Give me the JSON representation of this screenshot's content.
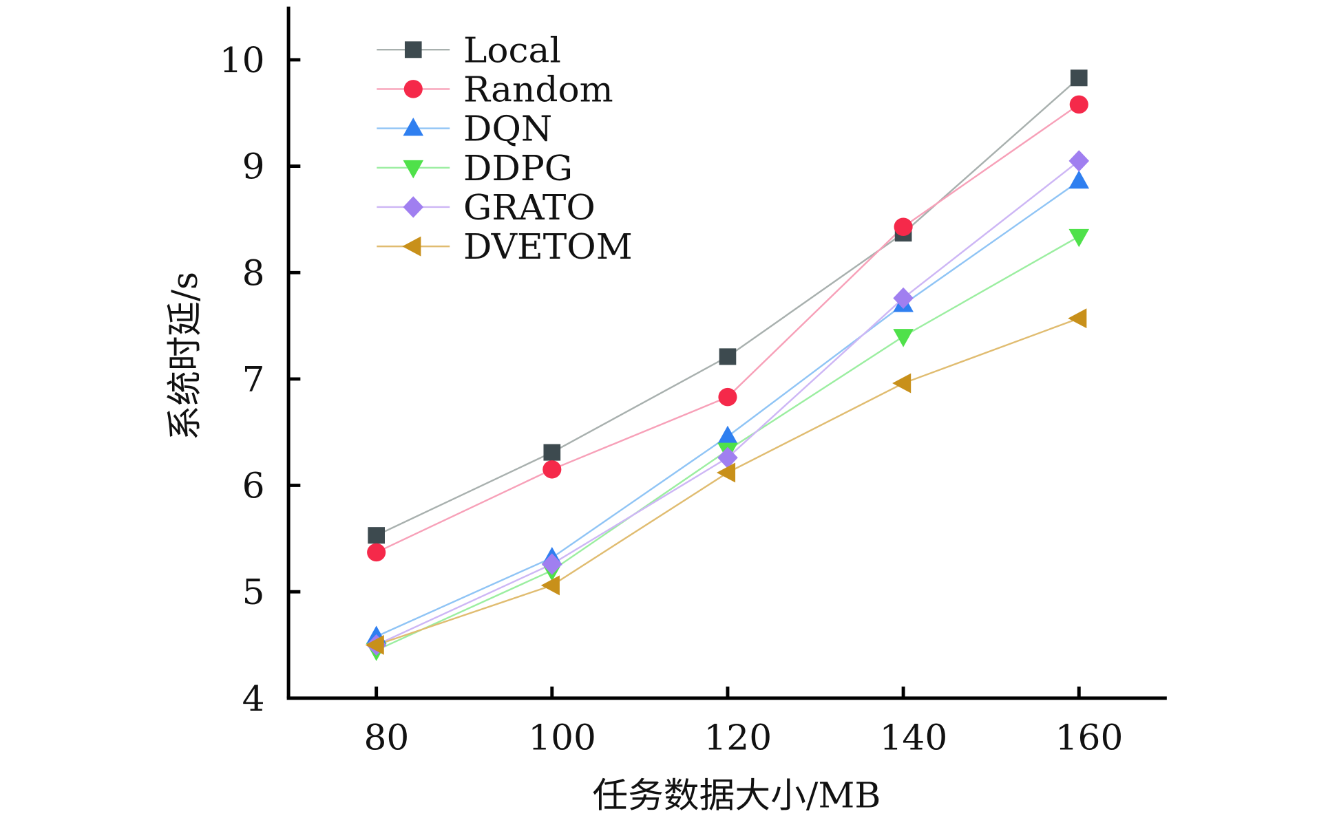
{
  "chart_data": {
    "type": "line",
    "title": "",
    "xlabel": "任务数据大小/MB",
    "ylabel": "系统时延/s",
    "x": [
      80,
      100,
      120,
      140,
      160
    ],
    "xlim": [
      70,
      170
    ],
    "ylim": [
      4,
      10.5
    ],
    "xticks": [
      "80",
      "100",
      "120",
      "140",
      "160"
    ],
    "yticks": [
      "4",
      "5",
      "6",
      "7",
      "8",
      "9",
      "10"
    ],
    "grid": false,
    "legend_position": "top-left",
    "series": [
      {
        "name": "Local",
        "marker": "square",
        "color": "#3d4a4f",
        "line_color": "#a8b0ae",
        "values": [
          5.53,
          6.31,
          7.21,
          8.37,
          9.83
        ]
      },
      {
        "name": "Random",
        "marker": "circle",
        "color": "#f5294a",
        "line_color": "#f7a0b8",
        "values": [
          5.37,
          6.15,
          6.83,
          8.43,
          9.58
        ]
      },
      {
        "name": "DQN",
        "marker": "triangle-up",
        "color": "#2f7ff0",
        "line_color": "#8fc4f5",
        "values": [
          4.58,
          5.32,
          6.46,
          7.7,
          8.86
        ]
      },
      {
        "name": "DDPG",
        "marker": "triangle-down",
        "color": "#4fe14a",
        "line_color": "#9beea0",
        "values": [
          4.45,
          5.2,
          6.33,
          7.4,
          8.34
        ]
      },
      {
        "name": "GRATO",
        "marker": "diamond",
        "color": "#a07ff0",
        "line_color": "#cdb6f5",
        "values": [
          4.5,
          5.26,
          6.26,
          7.76,
          9.05
        ]
      },
      {
        "name": "DVETOM",
        "marker": "triangle-left",
        "color": "#c8901a",
        "line_color": "#e0bc70",
        "values": [
          4.5,
          5.06,
          6.12,
          6.96,
          7.57
        ]
      }
    ]
  }
}
